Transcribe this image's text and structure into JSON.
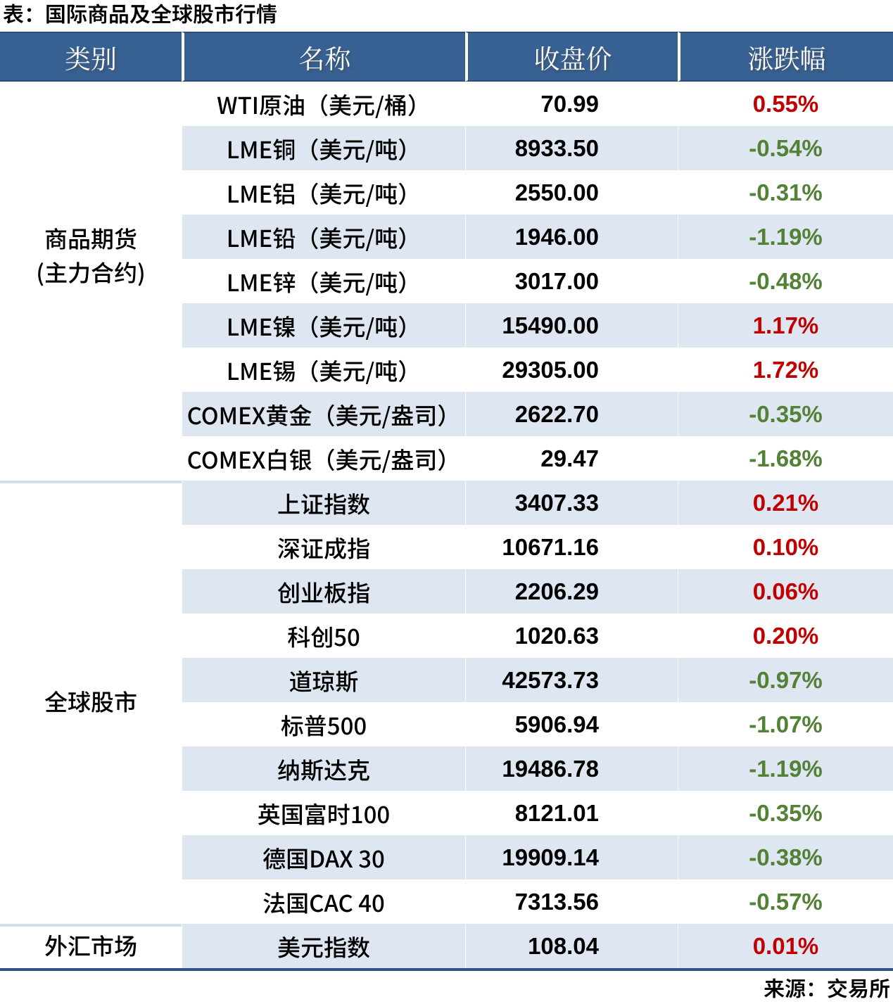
{
  "title": "表：国际商品及全球股市行情",
  "source_note": "来源：交易所",
  "colors": {
    "header_bg": "#376192",
    "header_edge": "#2B4C74",
    "band_bg": "#DEE6F1",
    "group_separator": "#D4DEEA",
    "table_bottom_border": "#2F537F",
    "up_red": "#C00000",
    "down_green": "#538135"
  },
  "chart_data": {
    "type": "table",
    "title": "表：国际商品及全球股市行情",
    "columns": [
      "类别",
      "名称",
      "收盘价",
      "涨跌幅"
    ],
    "groups": [
      {
        "category": "商品期货（主力合约）",
        "category_lines": [
          "商品期货",
          "(主力合约)"
        ],
        "rows": [
          {
            "name": "WTI原油（美元/桶）",
            "close": "70.99",
            "change": "0.55%",
            "direction": "up"
          },
          {
            "name": "LME铜（美元/吨）",
            "close": "8933.50",
            "change": "-0.54%",
            "direction": "down"
          },
          {
            "name": "LME铝（美元/吨）",
            "close": "2550.00",
            "change": "-0.31%",
            "direction": "down"
          },
          {
            "name": "LME铅（美元/吨）",
            "close": "1946.00",
            "change": "-1.19%",
            "direction": "down"
          },
          {
            "name": "LME锌（美元/吨）",
            "close": "3017.00",
            "change": "-0.48%",
            "direction": "down"
          },
          {
            "name": "LME镍（美元/吨）",
            "close": "15490.00",
            "change": "1.17%",
            "direction": "up"
          },
          {
            "name": "LME锡（美元/吨）",
            "close": "29305.00",
            "change": "1.72%",
            "direction": "up"
          },
          {
            "name": "COMEX黄金（美元/盎司）",
            "close": "2622.70",
            "change": "-0.35%",
            "direction": "down"
          },
          {
            "name": "COMEX白银（美元/盎司）",
            "close": "29.47",
            "change": "-1.68%",
            "direction": "down"
          }
        ]
      },
      {
        "category": "全球股市",
        "category_lines": [
          "全球股市"
        ],
        "rows": [
          {
            "name": "上证指数",
            "close": "3407.33",
            "change": "0.21%",
            "direction": "up"
          },
          {
            "name": "深证成指",
            "close": "10671.16",
            "change": "0.10%",
            "direction": "up"
          },
          {
            "name": "创业板指",
            "close": "2206.29",
            "change": "0.06%",
            "direction": "up"
          },
          {
            "name": "科创50",
            "close": "1020.63",
            "change": "0.20%",
            "direction": "up"
          },
          {
            "name": "道琼斯",
            "close": "42573.73",
            "change": "-0.97%",
            "direction": "down"
          },
          {
            "name": "标普500",
            "close": "5906.94",
            "change": "-1.07%",
            "direction": "down"
          },
          {
            "name": "纳斯达克",
            "close": "19486.78",
            "change": "-1.19%",
            "direction": "down"
          },
          {
            "name": "英国富时100",
            "close": "8121.01",
            "change": "-0.35%",
            "direction": "down"
          },
          {
            "name": "德国DAX 30",
            "close": "19909.14",
            "change": "-0.38%",
            "direction": "down"
          },
          {
            "name": "法国CAC 40",
            "close": "7313.56",
            "change": "-0.57%",
            "direction": "down"
          }
        ]
      },
      {
        "category": "外汇市场",
        "category_lines": [
          "外汇市场"
        ],
        "rows": [
          {
            "name": "美元指数",
            "close": "108.04",
            "change": "0.01%",
            "direction": "up"
          }
        ]
      }
    ]
  }
}
